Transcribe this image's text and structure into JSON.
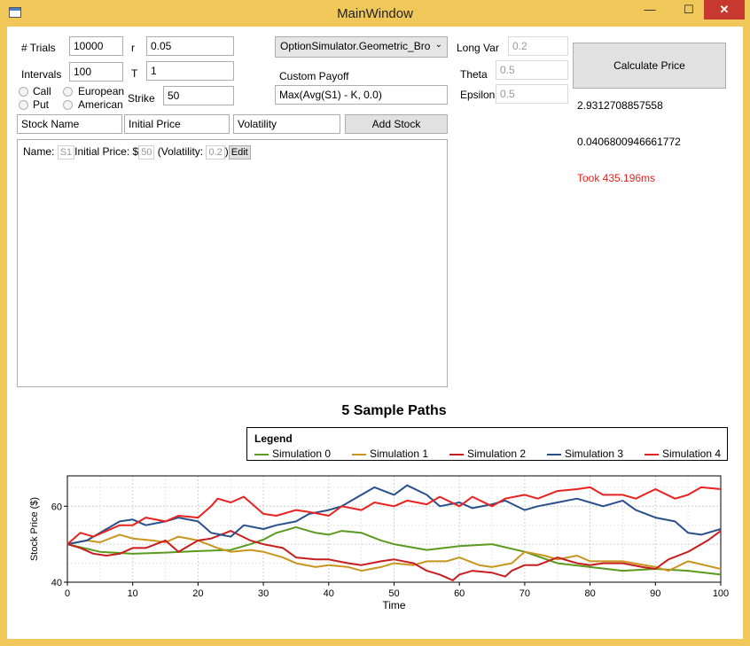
{
  "window": {
    "title": "MainWindow",
    "minimize": "—",
    "maximize": "☐",
    "close": "✕"
  },
  "form": {
    "trials_label": "# Trials",
    "trials_value": "10000",
    "intervals_label": "Intervals",
    "intervals_value": "100",
    "r_label": "r",
    "r_value": "0.05",
    "t_label": "T",
    "t_value": "1",
    "strike_label": "Strike",
    "strike_value": "50",
    "call_label": "Call",
    "put_label": "Put",
    "european_label": "European",
    "american_label": "American",
    "simulator_select": "OptionSimulator.Geometric_Bro",
    "custom_payoff_label": "Custom Payoff",
    "custom_payoff_value": "Max(Avg(S1) - K, 0.0)",
    "long_var_label": "Long Var",
    "long_var_value": "0.2",
    "theta_label": "Theta",
    "theta_value": "0.5",
    "epsilon_label": "Epsilon",
    "epsilon_value": "0.5",
    "calculate_label": "Calculate Price"
  },
  "stock_entry": {
    "name_placeholder": "Stock Name",
    "price_placeholder": "Initial Price",
    "vol_placeholder": "Volatility",
    "add_label": "Add Stock"
  },
  "stock_list": [
    {
      "name_label": "Name:",
      "name": "S1",
      "price_label": "Initial Price: $",
      "price": "50",
      "vol_label": "(Volatility:",
      "vol": "0.2",
      "close_paren": ")",
      "edit_label": "Edit"
    }
  ],
  "results": {
    "price": "2.9312708857558",
    "error": "0.0406800946661772",
    "timing": "Took 435.196ms",
    "timing_color": "#e8221f"
  },
  "chart_data": {
    "type": "line",
    "title": "5 Sample Paths",
    "legend_title": "Legend",
    "legend_position": "top",
    "xlabel": "Time",
    "ylabel": "Stock Price ($)",
    "xlim": [
      0,
      100
    ],
    "ylim": [
      40,
      68
    ],
    "xticks": [
      0,
      10,
      20,
      30,
      40,
      50,
      60,
      70,
      80,
      90,
      100
    ],
    "yticks": [
      40,
      60
    ],
    "grid": true,
    "series": [
      {
        "name": "Simulation 0",
        "color": "#5a9a1e",
        "x": [
          0,
          5,
          10,
          15,
          20,
          25,
          28,
          30,
          32,
          35,
          38,
          40,
          42,
          45,
          48,
          50,
          55,
          60,
          65,
          70,
          75,
          80,
          85,
          90,
          95,
          100
        ],
        "y": [
          50,
          48,
          47.5,
          47.8,
          48.2,
          48.5,
          50,
          51.2,
          53,
          54.5,
          53,
          52.5,
          53.5,
          53,
          51,
          50,
          48.5,
          49.5,
          50,
          48,
          45,
          44,
          43,
          43.5,
          43,
          42
        ]
      },
      {
        "name": "Simulation 1",
        "color": "#c8961e",
        "x": [
          0,
          3,
          5,
          8,
          10,
          13,
          15,
          17,
          20,
          23,
          25,
          28,
          30,
          33,
          35,
          38,
          40,
          43,
          45,
          48,
          50,
          53,
          55,
          58,
          60,
          63,
          65,
          68,
          70,
          73,
          75,
          78,
          80,
          85,
          90,
          92,
          95,
          100
        ],
        "y": [
          50,
          51,
          50.5,
          52.5,
          51.5,
          51,
          50.5,
          52,
          51,
          49,
          48,
          48.5,
          48,
          46.5,
          45,
          44,
          44.5,
          44,
          43,
          44,
          45,
          44.5,
          45.5,
          45.5,
          46.5,
          44.5,
          44,
          45,
          48,
          47,
          46,
          47,
          45.5,
          45.5,
          44,
          43,
          45.5,
          43.5
        ]
      },
      {
        "name": "Simulation 2",
        "color": "#c81e1e",
        "x": [
          0,
          2,
          4,
          6,
          8,
          10,
          12,
          15,
          17,
          20,
          22,
          25,
          28,
          30,
          33,
          35,
          38,
          40,
          43,
          45,
          48,
          50,
          53,
          55,
          57,
          59,
          60,
          62,
          65,
          67,
          68,
          70,
          72,
          75,
          78,
          80,
          82,
          85,
          88,
          90,
          92,
          95,
          98,
          100
        ],
        "y": [
          50,
          49,
          47.5,
          47,
          47.5,
          49,
          49,
          51,
          48,
          51,
          51.5,
          53.5,
          51,
          50,
          49,
          46.5,
          46,
          46,
          45,
          44.5,
          45.5,
          46,
          45,
          43,
          42,
          40.5,
          42,
          43,
          42.5,
          41.5,
          43,
          44.5,
          44.5,
          46.5,
          45,
          44.5,
          45,
          45,
          44,
          43.5,
          46,
          48,
          51,
          53.5
        ]
      },
      {
        "name": "Simulation 3",
        "color": "#2a508c",
        "x": [
          0,
          3,
          5,
          7,
          8,
          10,
          12,
          15,
          17,
          20,
          22,
          25,
          27,
          30,
          32,
          35,
          37,
          40,
          42,
          45,
          47,
          50,
          52,
          55,
          57,
          60,
          62,
          65,
          67,
          70,
          72,
          75,
          78,
          80,
          82,
          85,
          87,
          90,
          93,
          95,
          97,
          100
        ],
        "y": [
          50,
          51,
          53,
          55,
          56,
          56.5,
          55,
          56,
          57,
          56,
          53,
          52,
          55,
          54,
          55,
          56,
          58,
          59,
          60,
          63,
          65,
          63,
          65.5,
          63,
          60,
          61,
          59.5,
          60.5,
          61.5,
          59,
          60,
          61,
          62,
          61,
          60,
          61.5,
          59,
          57,
          56,
          53,
          52.5,
          54
        ]
      },
      {
        "name": "Simulation 4",
        "color": "#e8221f",
        "x": [
          0,
          2,
          4,
          6,
          8,
          10,
          12,
          15,
          17,
          20,
          22,
          23,
          25,
          27,
          28,
          30,
          32,
          35,
          37,
          40,
          42,
          45,
          47,
          50,
          52,
          55,
          57,
          60,
          62,
          65,
          67,
          70,
          72,
          75,
          78,
          80,
          82,
          85,
          87,
          90,
          93,
          95,
          97,
          100
        ],
        "y": [
          50,
          53,
          52,
          53.5,
          55,
          55,
          57,
          56,
          57.5,
          57,
          60,
          62,
          61,
          62.5,
          61,
          58,
          57.5,
          59,
          58.5,
          57.5,
          60,
          59,
          61,
          60,
          61.5,
          60.5,
          62.5,
          60,
          62.5,
          60,
          62,
          63,
          62,
          64,
          64.5,
          65,
          63,
          63,
          62,
          64.5,
          62,
          63,
          65,
          64.5
        ]
      }
    ]
  }
}
